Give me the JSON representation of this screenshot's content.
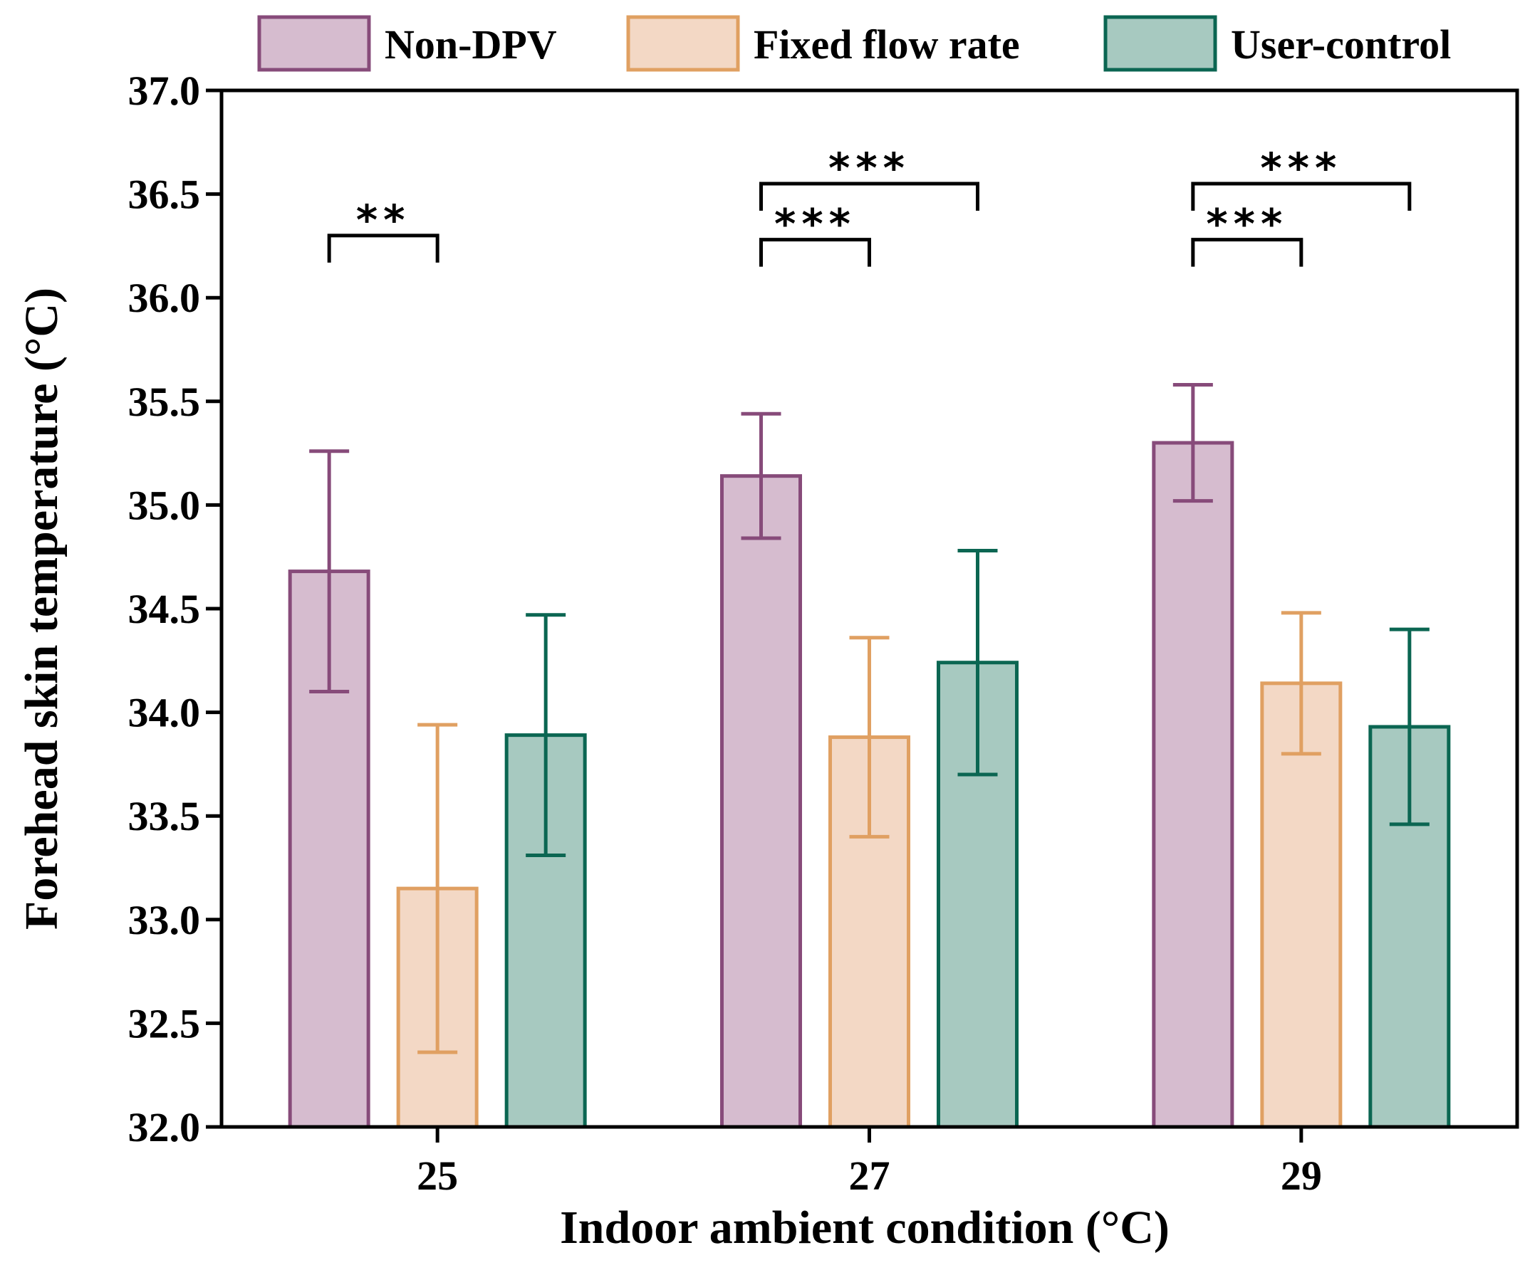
{
  "chart_data": {
    "type": "bar",
    "title": "",
    "xlabel": "Indoor ambient condition (°C)",
    "ylabel": "Forehead skin temperature (°C)",
    "ylim": [
      32.0,
      37.0
    ],
    "yticks": [
      "32.0",
      "32.5",
      "33.0",
      "33.5",
      "34.0",
      "34.5",
      "35.0",
      "35.5",
      "36.0",
      "36.5",
      "37.0"
    ],
    "categories": [
      "25",
      "27",
      "29"
    ],
    "legend_position": "top",
    "series": [
      {
        "name": "Non-DPV",
        "values": [
          34.68,
          35.14,
          35.3
        ],
        "errors": [
          0.58,
          0.3,
          0.28
        ],
        "fill": "#d6bccf",
        "stroke": "#874b7a"
      },
      {
        "name": "Fixed flow rate",
        "values": [
          33.15,
          33.88,
          34.14
        ],
        "errors": [
          0.79,
          0.48,
          0.34
        ],
        "fill": "#f3d8c5",
        "stroke": "#e0a062"
      },
      {
        "name": "User-control",
        "values": [
          33.89,
          34.24,
          33.93
        ],
        "errors": [
          0.58,
          0.54,
          0.47
        ],
        "fill": "#a7c9c0",
        "stroke": "#0b6652"
      }
    ],
    "significance": [
      {
        "category": 0,
        "from": 0,
        "to": 1,
        "label": "**",
        "y": 36.3
      },
      {
        "category": 1,
        "from": 0,
        "to": 1,
        "label": "***",
        "y": 36.28
      },
      {
        "category": 1,
        "from": 0,
        "to": 2,
        "label": "***",
        "y": 36.55
      },
      {
        "category": 2,
        "from": 0,
        "to": 1,
        "label": "***",
        "y": 36.28
      },
      {
        "category": 2,
        "from": 0,
        "to": 2,
        "label": "***",
        "y": 36.55
      }
    ]
  }
}
